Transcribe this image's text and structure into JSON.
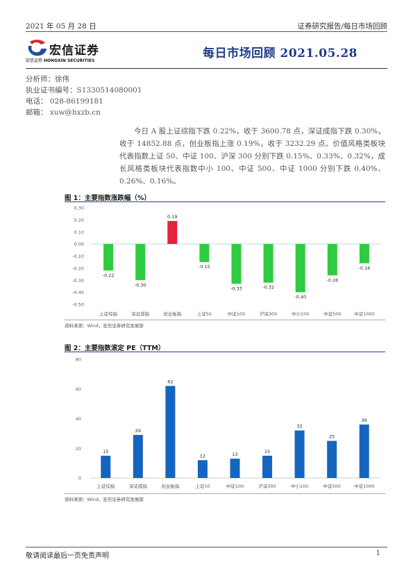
{
  "header": {
    "date": "2021 年 05 月 28 日",
    "series": "证券研究报告/每日市场回顾"
  },
  "logo": {
    "cn": "宏信证券",
    "en_cn": "宏信证券",
    "en": "HONGXIN SECURITIES"
  },
  "title": "每日市场回顾 2021.05.28",
  "analyst": {
    "name": "分析师：徐伟",
    "cert": "执业证书编号：S1330514080001",
    "phone": "电话： 028-86199181",
    "email": "邮箱： xuw@hxzb.cn"
  },
  "summary": "今日 A 股上证综指下跌 0.22%，收于 3600.78 点，深证成指下跌 0.30%，收于 14852.88 点，创业板指上涨 0.19%，收于 3232.29 点。价值风格类板块代表指数上证 50、中证 100、沪深 300 分别下跌 0.15%、0.33%、0.32%，成长风格类板块代表指数中小 100、中证 500、中证 1000 分别下跌 0.40%、0.26%、0.16%。",
  "figures": [
    {
      "title": "图 1：主要指数涨跌幅（%）",
      "source": "资料来源：Wind，宏信证券研究发展部"
    },
    {
      "title": "图 2：主要指数滚定 PE（TTM）",
      "source": "资料来源：Wind，宏信证券研究发展部"
    }
  ],
  "chart_data": [
    {
      "type": "bar",
      "title": "图 1：主要指数涨跌幅（%）",
      "categories": [
        "上证综指",
        "深证成指",
        "创业板指",
        "上证50",
        "中证100",
        "沪深300",
        "中小100",
        "中证500",
        "中证1000"
      ],
      "values": [
        -0.22,
        -0.3,
        0.19,
        -0.15,
        -0.33,
        -0.32,
        -0.4,
        -0.26,
        -0.16
      ],
      "labels": [
        "-0.22",
        "-0.30",
        "0.19",
        "-0.15",
        "-0.33",
        "-0.32",
        "-0.40",
        "-0.26",
        "-0.16"
      ],
      "ylim": [
        -0.5,
        0.3
      ],
      "yticks": [
        0.3,
        0.2,
        0.1,
        0.0,
        -0.1,
        -0.2,
        -0.3,
        -0.4,
        -0.5
      ],
      "ytick_labels": [
        "0.30",
        "0.20",
        "0.10",
        "0.00",
        "-0.10",
        "-0.20",
        "-0.30",
        "-0.40",
        "-0.50"
      ],
      "grid": false,
      "colors": {
        "up": "#e8213c",
        "down": "#2ecc40"
      }
    },
    {
      "type": "bar",
      "title": "图 2：主要指数滚定 PE（TTM）",
      "categories": [
        "上证综指",
        "深证成指",
        "创业板指",
        "上证50",
        "中证100",
        "沪深300",
        "中小100",
        "中证500",
        "中证1000"
      ],
      "values": [
        15,
        29,
        62,
        12,
        13,
        15,
        32,
        25,
        36
      ],
      "labels": [
        "15",
        "29",
        "62",
        "12",
        "13",
        "15",
        "32",
        "25",
        "36"
      ],
      "ylim": [
        0,
        80
      ],
      "yticks": [
        80,
        60,
        40,
        20,
        0
      ],
      "ytick_labels": [
        "80",
        "60",
        "40",
        "20",
        "0"
      ],
      "grid": false,
      "colors": {
        "bar": "#1565c0"
      }
    }
  ],
  "footer": {
    "disclaimer": "敬请阅读最后一页免责声明",
    "page": "1"
  }
}
